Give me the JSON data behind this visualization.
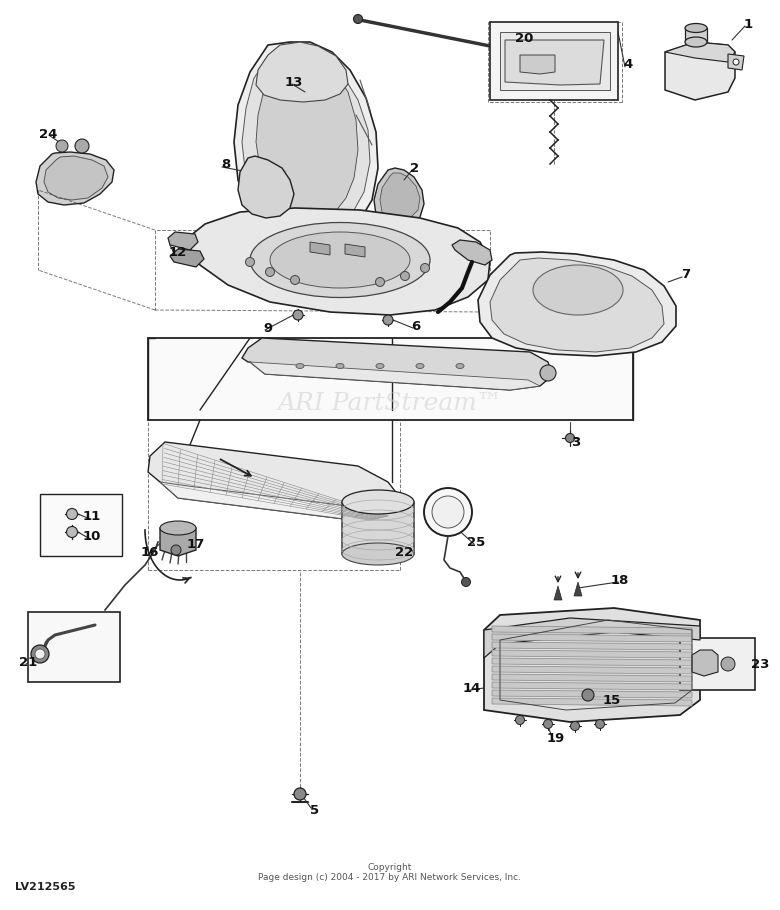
{
  "watermark": "ARI PartStream™",
  "watermark_color": "#cccccc",
  "footer_left": "LV212565",
  "footer_center": "Copyright\nPage design (c) 2004 - 2017 by ARI Network Services, Inc.",
  "bg_color": "#ffffff",
  "lc": "#222222",
  "watermark_fontsize": 18,
  "label_fontsize": 9.5,
  "footer_fontsize": 6.5
}
